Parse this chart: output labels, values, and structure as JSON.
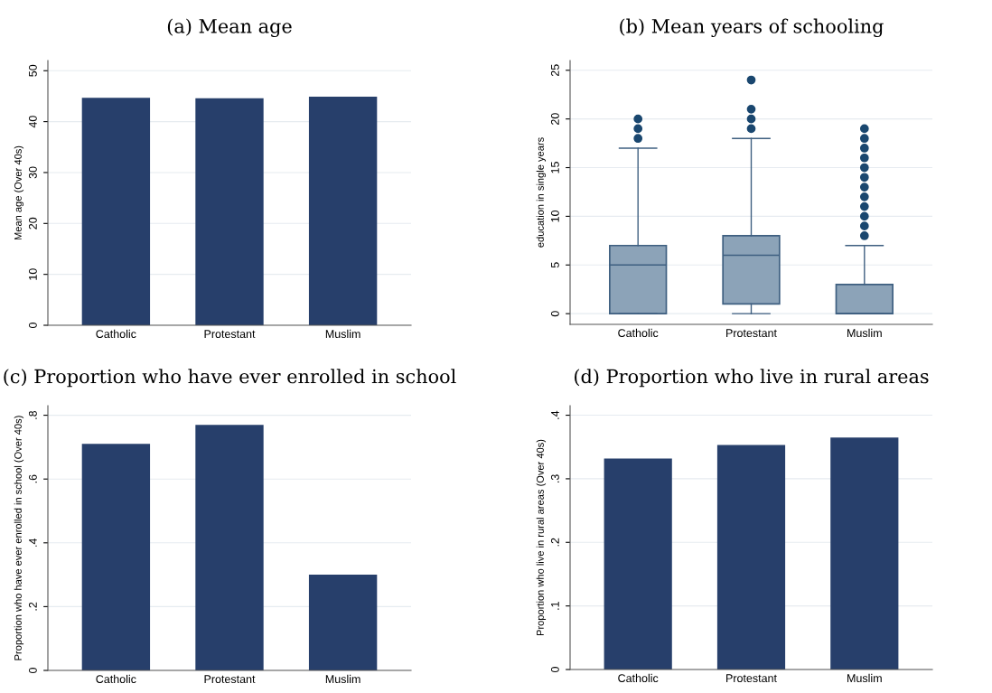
{
  "chart_data": [
    {
      "type": "bar",
      "title": "(a) Mean age",
      "ylabel": "Mean age (Over 40s)",
      "categories": [
        "Catholic",
        "Protestant",
        "Muslim"
      ],
      "values": [
        44.7,
        44.6,
        44.9
      ],
      "color": "#273f6b",
      "ylim": [
        0,
        52
      ],
      "yticks": [
        0,
        10,
        20,
        30,
        40,
        50
      ],
      "grid": "y"
    },
    {
      "type": "box",
      "title": "(b) Mean years of schooling",
      "ylabel": "education in single years",
      "categories": [
        "Catholic",
        "Protestant",
        "Muslim"
      ],
      "color": "#8ca3b8",
      "boxes": [
        {
          "low": 0,
          "q1": 0,
          "median": 5,
          "q3": 7,
          "high": 17,
          "outliers": [
            18,
            19,
            20
          ]
        },
        {
          "low": 0,
          "q1": 1,
          "median": 6,
          "q3": 8,
          "high": 18,
          "outliers": [
            19,
            20,
            21,
            24
          ]
        },
        {
          "low": 0,
          "q1": 0,
          "median": 0,
          "q3": 3,
          "high": 7,
          "outliers": [
            8,
            9,
            10,
            11,
            12,
            13,
            14,
            15,
            16,
            17,
            18,
            19
          ]
        }
      ],
      "ylim": [
        -1.1,
        26
      ],
      "yticks": [
        0,
        5,
        10,
        15,
        20,
        25
      ],
      "grid": "y"
    },
    {
      "type": "bar",
      "title": "(c) Proportion who have ever enrolled in school",
      "ylabel": "Proportion who have ever enrolled in school (Over 40s)",
      "categories": [
        "Catholic",
        "Protestant",
        "Muslim"
      ],
      "values": [
        0.71,
        0.77,
        0.3
      ],
      "color": "#273f6b",
      "ylim": [
        0,
        0.83
      ],
      "yticks": [
        0,
        {
          "value": 0.2,
          "label": ".2"
        },
        {
          "value": 0.4,
          "label": ".4"
        },
        {
          "value": 0.6,
          "label": ".6"
        },
        {
          "value": 0.8,
          "label": ".8"
        }
      ],
      "grid": "y"
    },
    {
      "type": "bar",
      "title": "(d) Proportion who live in rural areas",
      "ylabel": "Proportion who live in rural areas (Over 40s)",
      "categories": [
        "Catholic",
        "Protestant",
        "Muslim"
      ],
      "values": [
        0.332,
        0.353,
        0.365
      ],
      "color": "#273f6b",
      "ylim": [
        0,
        0.415
      ],
      "yticks": [
        0,
        {
          "value": 0.1,
          "label": ".1"
        },
        {
          "value": 0.2,
          "label": ".2"
        },
        {
          "value": 0.3,
          "label": ".3"
        },
        {
          "value": 0.4,
          "label": ".4"
        }
      ],
      "grid": "y"
    }
  ]
}
